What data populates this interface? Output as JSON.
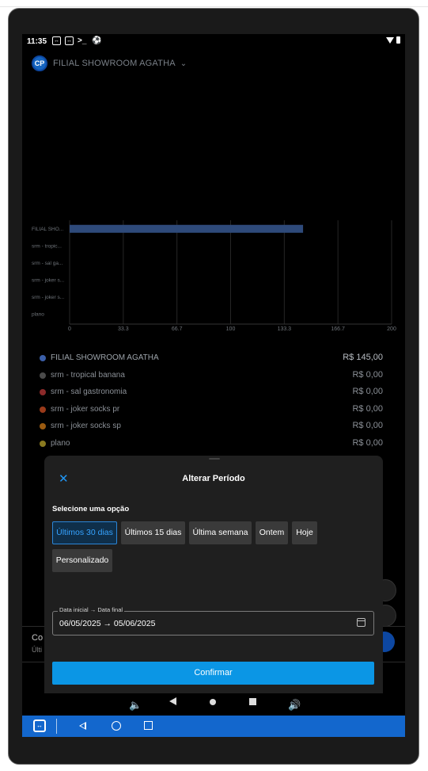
{
  "status_bar": {
    "time": "11:35",
    "icons": [
      "teamviewer-icon",
      "teamviewer-icon",
      "terminal-icon",
      "settings-icon"
    ],
    "right_icons": [
      "wifi-icon",
      "battery-icon"
    ]
  },
  "header": {
    "logo_text": "CP",
    "branch_name": "FILIAL SHOWROOM AGATHA"
  },
  "chart_data": {
    "type": "bar",
    "orientation": "horizontal",
    "categories": [
      "FILIAL SHO...",
      "srm - tropic...",
      "srm - sal ga...",
      "srm - joker s...",
      "srm - joker s...",
      "plano"
    ],
    "values": [
      145,
      0,
      0,
      0,
      0,
      0
    ],
    "xlim": [
      0,
      200
    ],
    "xticks": [
      "0",
      "33.3",
      "66.7",
      "100",
      "133.3",
      "166.7",
      "200"
    ],
    "bar_color": "#2e4a7a",
    "grid": true
  },
  "legend": [
    {
      "label": "FILIAL SHOWROOM AGATHA",
      "value": "R$ 145,00",
      "color": "#3b5fa8"
    },
    {
      "label": "srm - tropical banana",
      "value": "R$ 0,00",
      "color": "#4a4a4a"
    },
    {
      "label": "srm - sal gastronomia",
      "value": "R$ 0,00",
      "color": "#8c2a2a"
    },
    {
      "label": "srm - joker socks pr",
      "value": "R$ 0,00",
      "color": "#9a3a1a"
    },
    {
      "label": "srm - joker socks sp",
      "value": "R$ 0,00",
      "color": "#9a5a10"
    },
    {
      "label": "plano",
      "value": "R$ 0,00",
      "color": "#8a7a20"
    }
  ],
  "background_card": {
    "title": "Co",
    "subtitle": "Últi"
  },
  "modal": {
    "title": "Alterar Período",
    "close_icon": "close-icon",
    "section_label": "Selecione uma opção",
    "options": [
      "Últimos 30 dias",
      "Últimos 15 dias",
      "Última semana",
      "Ontem",
      "Hoje",
      "Personalizado"
    ],
    "selected_option": "Últimos 30 dias",
    "date_field": {
      "label": "Data inicial → Data final",
      "value": "06/05/2025 → 05/06/2025"
    },
    "confirm_label": "Confirmar"
  },
  "colors": {
    "accent": "#0b96e5",
    "modal_bg": "#1f1f1f",
    "teamviewer_bar": "#1367cd"
  }
}
